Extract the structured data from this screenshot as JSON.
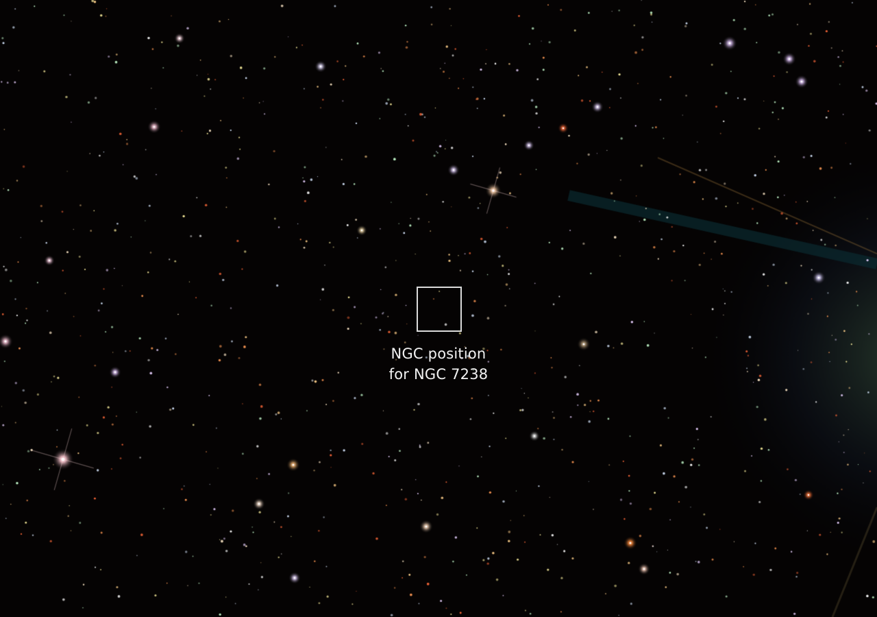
{
  "annotation": {
    "line1": "NGC position",
    "line2": "for NGC 7238"
  },
  "colors": {
    "background": "#050303",
    "marker": "#dcdcdc",
    "label": "#f2f2f2"
  }
}
